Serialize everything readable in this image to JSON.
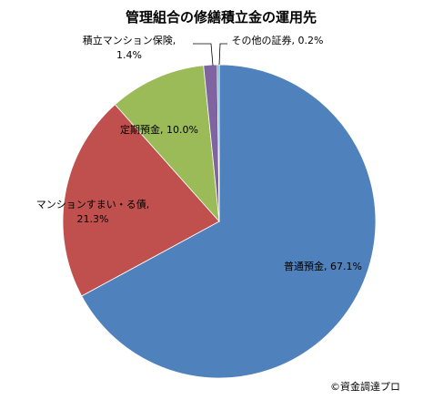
{
  "chart_data": {
    "type": "pie",
    "title": "管理組合の修繕積立金の運用先",
    "slices": [
      {
        "name": "普通預金",
        "value": 67.1,
        "label_lines": [
          "普通預金, 67.1%"
        ],
        "color": "#4F81BD"
      },
      {
        "name": "マンションすまい・る債",
        "value": 21.3,
        "label_lines": [
          "マンションすまい・る債,",
          "21.3%"
        ],
        "color": "#C0504D"
      },
      {
        "name": "定期預金",
        "value": 10.0,
        "label_lines": [
          "定期預金, 10.0%"
        ],
        "color": "#9BBB59"
      },
      {
        "name": "積立マンション保険",
        "value": 1.4,
        "label_lines": [
          "積立マンション保険,",
          "1.4%"
        ],
        "color": "#8064A2"
      },
      {
        "name": "その他の証券",
        "value": 0.2,
        "label_lines": [
          "その他の証券, 0.2%"
        ],
        "color": "#4BACC6"
      }
    ],
    "start_angle": "12 o'clock",
    "direction": "clockwise",
    "legend": "none"
  },
  "credit": "©資金調達プロ"
}
